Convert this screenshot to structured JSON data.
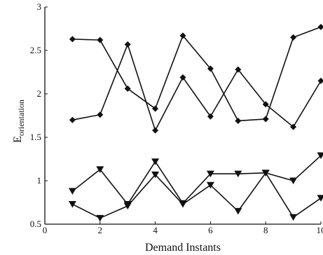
{
  "chart_data": {
    "type": "line",
    "title": "",
    "xlabel": "Demand Instants",
    "ylabel_main": "E",
    "ylabel_sub": "orientation",
    "xlim": [
      0,
      10
    ],
    "ylim": [
      0.5,
      3
    ],
    "x_ticks": [
      0,
      2,
      4,
      6,
      8,
      10
    ],
    "x_tick_labels": [
      "0",
      "2",
      "4",
      "6",
      "8",
      "10"
    ],
    "y_ticks": [
      0.5,
      1,
      1.5,
      2,
      2.5,
      3
    ],
    "y_tick_labels": [
      "0.5",
      "1",
      "1.5",
      "2",
      "2.5",
      "3"
    ],
    "grid": false,
    "legend": "none",
    "line_color": "#111111",
    "x": [
      1,
      2,
      3,
      4,
      5,
      6,
      7,
      8,
      9,
      10
    ],
    "series": [
      {
        "marker": "diamond",
        "values": [
          2.63,
          2.62,
          2.06,
          1.83,
          2.67,
          2.29,
          1.69,
          1.71,
          2.65,
          2.77
        ]
      },
      {
        "marker": "diamond",
        "values": [
          1.7,
          1.76,
          2.57,
          1.58,
          2.19,
          1.74,
          2.28,
          1.88,
          1.62,
          2.15
        ]
      },
      {
        "marker": "triangle-down",
        "values": [
          0.88,
          1.13,
          0.73,
          1.22,
          0.74,
          1.08,
          1.08,
          1.09,
          1.0,
          1.29
        ]
      },
      {
        "marker": "triangle-down",
        "values": [
          0.73,
          0.57,
          0.71,
          1.07,
          0.73,
          0.95,
          0.65,
          1.09,
          0.58,
          0.8
        ]
      }
    ]
  }
}
